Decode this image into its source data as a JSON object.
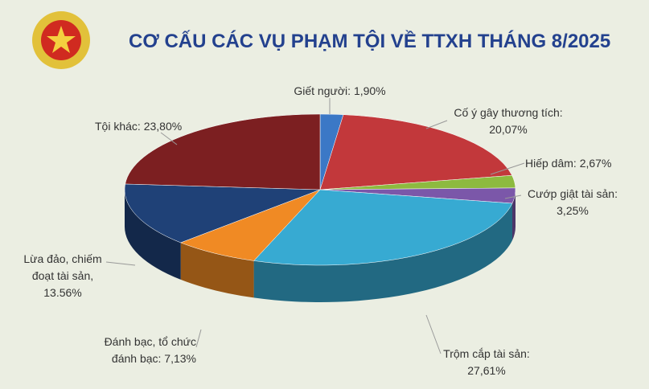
{
  "chart_data": {
    "type": "pie",
    "title": "CƠ CẤU CÁC VỤ PHẠM TỘI VỀ TTXH THÁNG 8/2025",
    "categories": [
      "Giết người:",
      "Cố ý gây thương tích:",
      "Hiếp dâm:",
      "Cướp giật tài sản:",
      "Trộm cắp tài sản:",
      "Đánh bạc, tổ chức đánh bạc:",
      "Lừa đảo, chiếm đoạt tài sản,",
      "Tội khác:"
    ],
    "values": [
      1.9,
      20.07,
      2.67,
      3.25,
      27.61,
      7.13,
      13.56,
      23.8
    ],
    "value_labels": [
      "1,90%",
      "20,07%",
      "2,67%",
      "3,25%",
      "27,61%",
      "7,13%",
      "13.56%",
      "23,80%"
    ],
    "colors": [
      "#3b78c6",
      "#c2383b",
      "#8dba3f",
      "#7b57a9",
      "#37aad2",
      "#f08a24",
      "#1f4177",
      "#7c1f21"
    ]
  }
}
